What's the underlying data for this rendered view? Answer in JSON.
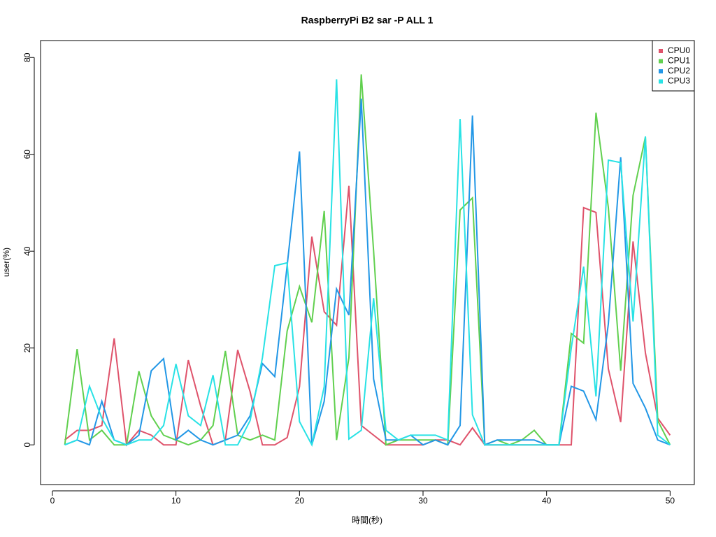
{
  "chart_data": {
    "type": "line",
    "title": "RaspberryPi B2 sar -P ALL 1",
    "x_label": "時間(秒)",
    "y_label": "user(%)",
    "x": [
      1,
      2,
      3,
      4,
      5,
      6,
      7,
      8,
      9,
      10,
      11,
      12,
      13,
      14,
      15,
      16,
      17,
      18,
      19,
      20,
      21,
      22,
      23,
      24,
      25,
      26,
      27,
      28,
      29,
      30,
      31,
      32,
      33,
      34,
      35,
      36,
      37,
      38,
      39,
      40,
      41,
      42,
      43,
      44,
      45,
      46,
      47,
      48,
      49,
      50
    ],
    "series": [
      {
        "name": "CPU0",
        "color": "#DF536B",
        "values": [
          1,
          3,
          3,
          4,
          22,
          0,
          3,
          2,
          0,
          0,
          17.5,
          8,
          0,
          1,
          19.6,
          11,
          0,
          0,
          1.5,
          12,
          43,
          27.5,
          24.7,
          53.5,
          4,
          2,
          0,
          0,
          0,
          0,
          1,
          1,
          0,
          3.5,
          0,
          0,
          0,
          0,
          0,
          0,
          0,
          0,
          49,
          48,
          15.7,
          4.7,
          42,
          19,
          5.5,
          2
        ]
      },
      {
        "name": "CPU1",
        "color": "#61D04F",
        "values": [
          0,
          19.8,
          1,
          3,
          0,
          0,
          15.2,
          6,
          2,
          1,
          0,
          1,
          4,
          19.4,
          2,
          1,
          2,
          1,
          23.5,
          32.7,
          25.3,
          48.3,
          1,
          18,
          76.5,
          40,
          0,
          1,
          1,
          1,
          1,
          0,
          48.5,
          51,
          0,
          1,
          0,
          1,
          3,
          0,
          0,
          23,
          21,
          68.6,
          49,
          15.3,
          51.5,
          63.6,
          5,
          0
        ]
      },
      {
        "name": "CPU2",
        "color": "#2297E6",
        "values": [
          0,
          1,
          0,
          9,
          1,
          0,
          2,
          15.3,
          17.8,
          1,
          3,
          1,
          0,
          1,
          2,
          6,
          16.8,
          14.1,
          37,
          60.6,
          0,
          9,
          32.2,
          26.8,
          71.5,
          13.6,
          1,
          1,
          2,
          0,
          1,
          0,
          4,
          68,
          0,
          1,
          1,
          1,
          1,
          0,
          0,
          12.1,
          11.1,
          5.2,
          25,
          59.4,
          12.7,
          7.6,
          1,
          0
        ]
      },
      {
        "name": "CPU3",
        "color": "#28E2E5",
        "values": [
          0,
          1,
          12.1,
          5.5,
          1,
          0,
          1,
          1,
          4,
          16.7,
          6,
          4,
          14.4,
          0,
          0,
          5,
          18,
          37,
          37.6,
          4.8,
          0,
          12,
          75.5,
          1.2,
          3,
          30.3,
          3,
          1,
          2,
          2,
          2,
          1,
          67.3,
          6.2,
          0,
          0,
          0,
          0,
          0,
          0,
          0,
          20,
          36.8,
          10,
          58.8,
          58.3,
          25.5,
          63.7,
          2,
          0
        ]
      }
    ],
    "xlim": [
      -0.96,
      51.96
    ],
    "ylim": [
      -8.2,
      83.5
    ],
    "xticks": [
      0,
      10,
      20,
      30,
      40,
      50
    ],
    "yticks": [
      0,
      20,
      40,
      60,
      80
    ],
    "legend": "top-right"
  }
}
